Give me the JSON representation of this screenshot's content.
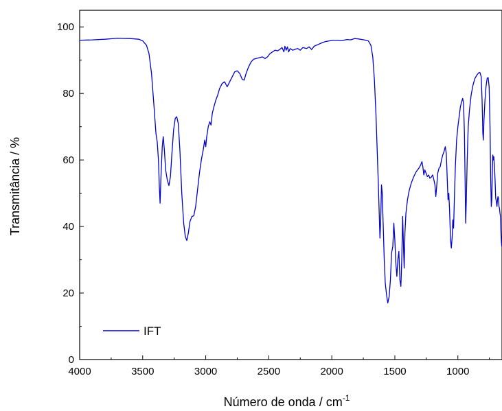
{
  "chart_data": {
    "type": "line",
    "title": "",
    "xlabel": "Número de onda / cm",
    "xlabel_superscript": "-1",
    "ylabel": "Transmitância / %",
    "xlim": [
      4000,
      650
    ],
    "ylim": [
      0,
      105
    ],
    "x_reversed": true,
    "x_ticks": [
      4000,
      3500,
      3000,
      2500,
      2000,
      1500,
      1000
    ],
    "y_ticks": [
      0,
      20,
      40,
      60,
      80,
      100
    ],
    "grid": false,
    "legend_position": "bottom-left",
    "series": [
      {
        "name": "IFT",
        "color": "#0000cc",
        "points": [
          [
            4000,
            96.0
          ],
          [
            3900,
            96.1
          ],
          [
            3800,
            96.3
          ],
          [
            3700,
            96.6
          ],
          [
            3600,
            96.5
          ],
          [
            3530,
            96.3
          ],
          [
            3500,
            95.8
          ],
          [
            3470,
            94.5
          ],
          [
            3450,
            92.0
          ],
          [
            3430,
            86.0
          ],
          [
            3410,
            76.0
          ],
          [
            3395,
            68.0
          ],
          [
            3385,
            65.5
          ],
          [
            3375,
            60.0
          ],
          [
            3368,
            52.0
          ],
          [
            3362,
            47.0
          ],
          [
            3355,
            55.0
          ],
          [
            3345,
            64.0
          ],
          [
            3337,
            67.0
          ],
          [
            3328,
            63.0
          ],
          [
            3318,
            57.0
          ],
          [
            3305,
            54.0
          ],
          [
            3292,
            52.3
          ],
          [
            3280,
            55.0
          ],
          [
            3268,
            62.0
          ],
          [
            3255,
            69.0
          ],
          [
            3242,
            72.5
          ],
          [
            3230,
            73.0
          ],
          [
            3218,
            71.0
          ],
          [
            3205,
            63.0
          ],
          [
            3190,
            50.0
          ],
          [
            3175,
            41.0
          ],
          [
            3162,
            37.0
          ],
          [
            3150,
            35.8
          ],
          [
            3138,
            38.0
          ],
          [
            3125,
            41.5
          ],
          [
            3110,
            43.0
          ],
          [
            3095,
            43.2
          ],
          [
            3080,
            46.0
          ],
          [
            3065,
            51.0
          ],
          [
            3050,
            56.0
          ],
          [
            3035,
            60.0
          ],
          [
            3020,
            63.0
          ],
          [
            3008,
            66.0
          ],
          [
            3000,
            64.0
          ],
          [
            2992,
            67.0
          ],
          [
            2980,
            70.0
          ],
          [
            2968,
            71.5
          ],
          [
            2958,
            70.5
          ],
          [
            2948,
            74.0
          ],
          [
            2935,
            76.0
          ],
          [
            2920,
            78.0
          ],
          [
            2905,
            79.5
          ],
          [
            2890,
            81.5
          ],
          [
            2870,
            83.0
          ],
          [
            2850,
            83.5
          ],
          [
            2830,
            82.0
          ],
          [
            2810,
            83.5
          ],
          [
            2790,
            85.0
          ],
          [
            2770,
            86.5
          ],
          [
            2750,
            86.8
          ],
          [
            2730,
            86.0
          ],
          [
            2710,
            84.2
          ],
          [
            2695,
            84.0
          ],
          [
            2680,
            86.0
          ],
          [
            2660,
            88.0
          ],
          [
            2640,
            89.5
          ],
          [
            2620,
            90.3
          ],
          [
            2600,
            90.5
          ],
          [
            2570,
            90.8
          ],
          [
            2550,
            91.0
          ],
          [
            2530,
            90.5
          ],
          [
            2510,
            91.0
          ],
          [
            2490,
            92.0
          ],
          [
            2470,
            92.5
          ],
          [
            2450,
            93.0
          ],
          [
            2430,
            92.8
          ],
          [
            2410,
            93.3
          ],
          [
            2395,
            93.8
          ],
          [
            2380,
            92.5
          ],
          [
            2372,
            94.2
          ],
          [
            2362,
            93.0
          ],
          [
            2352,
            94.0
          ],
          [
            2342,
            92.5
          ],
          [
            2330,
            93.5
          ],
          [
            2310,
            93.0
          ],
          [
            2290,
            93.3
          ],
          [
            2270,
            93.5
          ],
          [
            2250,
            93.0
          ],
          [
            2230,
            93.8
          ],
          [
            2200,
            93.5
          ],
          [
            2180,
            94.0
          ],
          [
            2160,
            93.2
          ],
          [
            2140,
            94.2
          ],
          [
            2110,
            94.7
          ],
          [
            2080,
            95.2
          ],
          [
            2050,
            95.6
          ],
          [
            2020,
            95.8
          ],
          [
            2000,
            96.0
          ],
          [
            1960,
            96.0
          ],
          [
            1920,
            95.9
          ],
          [
            1880,
            96.2
          ],
          [
            1850,
            96.1
          ],
          [
            1820,
            96.5
          ],
          [
            1790,
            96.4
          ],
          [
            1760,
            96.2
          ],
          [
            1730,
            96.0
          ],
          [
            1710,
            95.8
          ],
          [
            1690,
            94.5
          ],
          [
            1675,
            91.0
          ],
          [
            1662,
            84.0
          ],
          [
            1650,
            74.0
          ],
          [
            1640,
            63.0
          ],
          [
            1632,
            54.0
          ],
          [
            1624,
            44.0
          ],
          [
            1618,
            36.5
          ],
          [
            1612,
            42.0
          ],
          [
            1606,
            52.5
          ],
          [
            1600,
            50.0
          ],
          [
            1592,
            40.0
          ],
          [
            1584,
            30.0
          ],
          [
            1576,
            23.0
          ],
          [
            1566,
            19.5
          ],
          [
            1556,
            17.0
          ],
          [
            1545,
            19.0
          ],
          [
            1535,
            24.0
          ],
          [
            1526,
            32.0
          ],
          [
            1516,
            34.0
          ],
          [
            1508,
            41.0
          ],
          [
            1500,
            36.0
          ],
          [
            1492,
            29.0
          ],
          [
            1484,
            25.0
          ],
          [
            1476,
            30.0
          ],
          [
            1468,
            32.5
          ],
          [
            1460,
            24.0
          ],
          [
            1452,
            22.0
          ],
          [
            1445,
            30.0
          ],
          [
            1438,
            43.0
          ],
          [
            1432,
            35.0
          ],
          [
            1426,
            27.5
          ],
          [
            1420,
            38.0
          ],
          [
            1412,
            44.0
          ],
          [
            1400,
            48.0
          ],
          [
            1385,
            51.0
          ],
          [
            1370,
            53.0
          ],
          [
            1350,
            55.0
          ],
          [
            1330,
            56.5
          ],
          [
            1310,
            57.5
          ],
          [
            1295,
            58.5
          ],
          [
            1285,
            59.5
          ],
          [
            1278,
            58.0
          ],
          [
            1270,
            55.5
          ],
          [
            1262,
            57.0
          ],
          [
            1252,
            56.0
          ],
          [
            1242,
            55.0
          ],
          [
            1232,
            55.5
          ],
          [
            1222,
            54.5
          ],
          [
            1212,
            54.8
          ],
          [
            1200,
            55.5
          ],
          [
            1190,
            54.0
          ],
          [
            1182,
            52.5
          ],
          [
            1175,
            49.0
          ],
          [
            1168,
            52.0
          ],
          [
            1160,
            56.0
          ],
          [
            1150,
            57.5
          ],
          [
            1140,
            58.0
          ],
          [
            1130,
            60.0
          ],
          [
            1120,
            61.5
          ],
          [
            1110,
            62.5
          ],
          [
            1100,
            64.0
          ],
          [
            1092,
            62.0
          ],
          [
            1084,
            54.0
          ],
          [
            1078,
            48.0
          ],
          [
            1072,
            50.0
          ],
          [
            1066,
            45.0
          ],
          [
            1058,
            36.0
          ],
          [
            1052,
            33.5
          ],
          [
            1045,
            37.0
          ],
          [
            1040,
            42.0
          ],
          [
            1034,
            39.5
          ],
          [
            1028,
            48.0
          ],
          [
            1020,
            58.0
          ],
          [
            1010,
            66.0
          ],
          [
            1000,
            70.0
          ],
          [
            990,
            73.0
          ],
          [
            980,
            76.0
          ],
          [
            970,
            77.5
          ],
          [
            962,
            78.5
          ],
          [
            955,
            77.0
          ],
          [
            948,
            68.0
          ],
          [
            942,
            52.0
          ],
          [
            938,
            41.0
          ],
          [
            933,
            48.0
          ],
          [
            926,
            60.0
          ],
          [
            918,
            70.0
          ],
          [
            908,
            75.0
          ],
          [
            895,
            79.5
          ],
          [
            880,
            82.5
          ],
          [
            865,
            84.5
          ],
          [
            850,
            85.5
          ],
          [
            835,
            86.2
          ],
          [
            825,
            86.3
          ],
          [
            815,
            85.0
          ],
          [
            808,
            78.0
          ],
          [
            802,
            68.0
          ],
          [
            798,
            66.0
          ],
          [
            793,
            72.0
          ],
          [
            785,
            78.0
          ],
          [
            777,
            82.0
          ],
          [
            768,
            84.5
          ],
          [
            760,
            84.8
          ],
          [
            752,
            82.0
          ],
          [
            745,
            70.0
          ],
          [
            740,
            55.0
          ],
          [
            735,
            46.0
          ],
          [
            731,
            48.0
          ],
          [
            727,
            56.0
          ],
          [
            723,
            61.5
          ],
          [
            719,
            60.0
          ],
          [
            715,
            61.0
          ],
          [
            710,
            58.0
          ],
          [
            705,
            54.0
          ],
          [
            700,
            48.5
          ],
          [
            695,
            47.5
          ],
          [
            690,
            46.0
          ],
          [
            686,
            48.0
          ],
          [
            682,
            49.0
          ],
          [
            678,
            48.5
          ],
          [
            674,
            46.0
          ],
          [
            670,
            45.5
          ],
          [
            666,
            44.0
          ],
          [
            662,
            43.0
          ],
          [
            658,
            38.0
          ],
          [
            654,
            35.0
          ],
          [
            651,
            34.0
          ]
        ]
      }
    ]
  }
}
